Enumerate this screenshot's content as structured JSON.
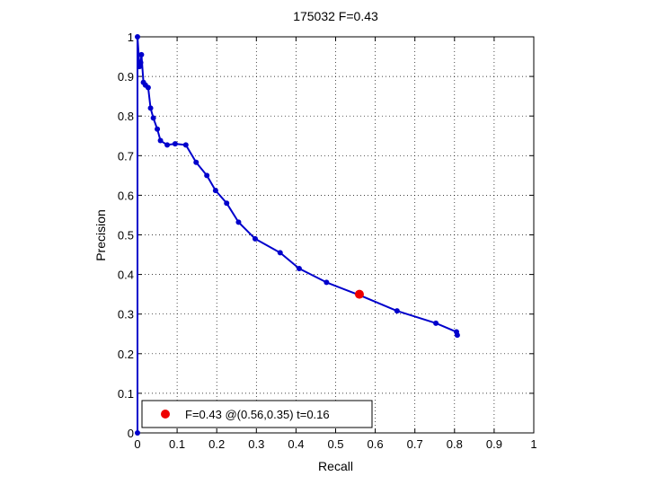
{
  "chart_data": {
    "type": "line",
    "title": "175032 F=0.43",
    "xlabel": "Recall",
    "ylabel": "Precision",
    "xlim": [
      0,
      1
    ],
    "ylim": [
      0,
      1
    ],
    "xticks": [
      "0",
      "0.1",
      "0.2",
      "0.3",
      "0.4",
      "0.5",
      "0.6",
      "0.7",
      "0.8",
      "0.9",
      "1"
    ],
    "yticks": [
      "0",
      "0.1",
      "0.2",
      "0.3",
      "0.4",
      "0.5",
      "0.6",
      "0.7",
      "0.8",
      "0.9",
      "1"
    ],
    "grid": true,
    "legend_placement": "bottom-left",
    "series": [
      {
        "color": "#0000cc",
        "marker": "dot",
        "points": [
          [
            0.0,
            0.0
          ],
          [
            0.0,
            1.0
          ],
          [
            0.005,
            0.925
          ],
          [
            0.008,
            0.935
          ],
          [
            0.01,
            0.955
          ],
          [
            0.015,
            0.885
          ],
          [
            0.02,
            0.878
          ],
          [
            0.027,
            0.872
          ],
          [
            0.033,
            0.82
          ],
          [
            0.04,
            0.795
          ],
          [
            0.05,
            0.767
          ],
          [
            0.058,
            0.738
          ],
          [
            0.075,
            0.727
          ],
          [
            0.095,
            0.73
          ],
          [
            0.122,
            0.727
          ],
          [
            0.148,
            0.683
          ],
          [
            0.175,
            0.65
          ],
          [
            0.197,
            0.612
          ],
          [
            0.225,
            0.58
          ],
          [
            0.255,
            0.532
          ],
          [
            0.297,
            0.49
          ],
          [
            0.36,
            0.455
          ],
          [
            0.408,
            0.415
          ],
          [
            0.477,
            0.38
          ],
          [
            0.562,
            0.347
          ],
          [
            0.655,
            0.308
          ],
          [
            0.753,
            0.277
          ],
          [
            0.805,
            0.255
          ],
          [
            0.807,
            0.247
          ]
        ]
      }
    ],
    "highlight": {
      "x": 0.56,
      "y": 0.35,
      "color": "#ee0000",
      "label": "F=0.43 @(0.56,0.35) t=0.16"
    }
  }
}
